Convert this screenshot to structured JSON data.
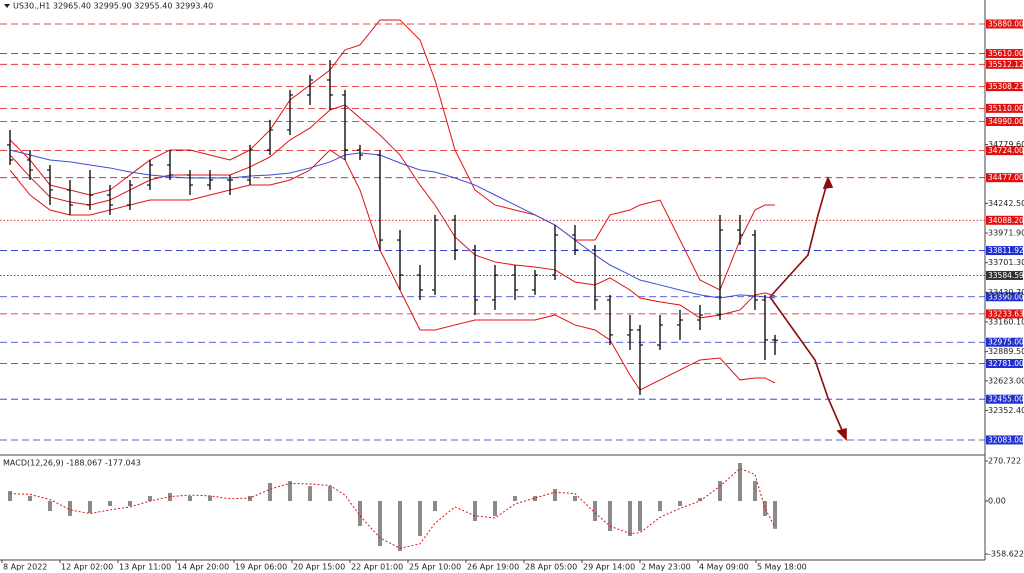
{
  "chart_data": [
    {
      "type": "ohlc",
      "title": "US30.,H1  32965.40 32995.90 32955.40 32993.40",
      "xlim": [
        0,
        197
      ],
      "ylim": [
        31964,
        36099
      ],
      "x": [
        2,
        6,
        10,
        14,
        18,
        22,
        26,
        30,
        34,
        38,
        42,
        46,
        50,
        54,
        58,
        62,
        66,
        69,
        72,
        76,
        80,
        84,
        87,
        91,
        95,
        99,
        103,
        107,
        111,
        115,
        119,
        122,
        126,
        128,
        132,
        136,
        140,
        144,
        148,
        151,
        153,
        155
      ],
      "open": [
        34776,
        34639,
        34547,
        34365,
        34228,
        34319,
        34228,
        34410,
        34593,
        34502,
        34410,
        34456,
        34456,
        34730,
        34913,
        35232,
        35369,
        35232,
        34730,
        34684,
        33908,
        33589,
        33452,
        34091,
        33817,
        33361,
        33589,
        33452,
        33589,
        33954,
        33817,
        33361,
        33042,
        33087,
        32950,
        33133,
        33178,
        33224,
        33999,
        33954,
        33361,
        32996
      ],
      "high": [
        34913,
        34730,
        34593,
        34456,
        34547,
        34410,
        34456,
        34639,
        34730,
        34547,
        34547,
        34502,
        34776,
        35005,
        35277,
        35414,
        35551,
        35277,
        34776,
        34730,
        33999,
        33680,
        34137,
        34137,
        33863,
        33680,
        33680,
        33635,
        34045,
        34045,
        33863,
        33407,
        33224,
        33133,
        33224,
        33270,
        33315,
        34137,
        34137,
        33999,
        33407,
        33042
      ],
      "low": [
        34593,
        34456,
        34228,
        34137,
        34182,
        34137,
        34182,
        34365,
        34456,
        34319,
        34365,
        34319,
        34410,
        34684,
        34867,
        35141,
        35095,
        34639,
        34639,
        33817,
        33452,
        33361,
        33407,
        33726,
        33224,
        33270,
        33361,
        33407,
        33543,
        33772,
        33270,
        32950,
        32905,
        32494,
        32905,
        32996,
        33087,
        33178,
        33863,
        33270,
        32813,
        32859
      ],
      "close": [
        34639,
        34547,
        34365,
        34228,
        34319,
        34228,
        34410,
        34593,
        34502,
        34410,
        34456,
        34456,
        34730,
        34913,
        35232,
        35369,
        35232,
        34730,
        34684,
        33908,
        33589,
        33452,
        34091,
        33817,
        33361,
        33589,
        33452,
        33589,
        33954,
        33817,
        33361,
        33042,
        33087,
        32950,
        33133,
        33178,
        33224,
        33999,
        33954,
        33361,
        32996,
        32993
      ],
      "bar_color": "#111111",
      "lines": [
        {
          "color": "#e01010",
          "values": [
            34822,
            34639,
            34410,
            34365,
            34319,
            34365,
            34502,
            34639,
            34730,
            34730,
            34684,
            34639,
            34730,
            34913,
            35186,
            35323,
            35460,
            35643,
            35689,
            35917,
            35917,
            35734,
            35369,
            34730,
            34365,
            34228,
            34182,
            34137,
            34045,
            33908,
            33908,
            34137,
            34182,
            34228,
            34273,
            33908,
            33543,
            33452,
            33908,
            34182,
            34228,
            34228
          ]
        },
        {
          "color": "#e01010",
          "values": [
            34685,
            34484,
            34301,
            34255,
            34228,
            34273,
            34365,
            34456,
            34502,
            34502,
            34502,
            34502,
            34575,
            34666,
            34822,
            34931,
            35095,
            35141,
            35022,
            34867,
            34684,
            34410,
            34228,
            33936,
            33772,
            33708,
            33680,
            33662,
            33635,
            33525,
            33498,
            33562,
            33452,
            33379,
            33343,
            33315,
            33197,
            33224,
            33270,
            33407,
            33425,
            33398
          ]
        },
        {
          "color": "#e01010",
          "values": [
            34547,
            34319,
            34182,
            34137,
            34137,
            34182,
            34228,
            34273,
            34273,
            34273,
            34319,
            34365,
            34410,
            34410,
            34456,
            34547,
            34730,
            34639,
            34365,
            33817,
            33452,
            33087,
            33087,
            33133,
            33178,
            33178,
            33178,
            33178,
            33224,
            33133,
            33087,
            32996,
            32676,
            32539,
            32631,
            32722,
            32813,
            32831,
            32631,
            32649,
            32649,
            32603
          ]
        },
        {
          "color": "#3b4fd0",
          "values": [
            34730,
            34684,
            34639,
            34621,
            34593,
            34566,
            34529,
            34502,
            34484,
            34474,
            34474,
            34474,
            34493,
            34502,
            34520,
            34566,
            34621,
            34684,
            34703,
            34684,
            34611,
            34547,
            34529,
            34474,
            34410,
            34319,
            34228,
            34137,
            34045,
            33908,
            33772,
            33680,
            33589,
            33543,
            33498,
            33452,
            33407,
            33379,
            33407,
            33398,
            33388,
            33379
          ]
        }
      ],
      "levels": [
        {
          "value": 35880,
          "label": "35880.00",
          "color": "#e01010",
          "style": "dash"
        },
        {
          "value": 35610,
          "label": "35610.00",
          "color": "#e01010",
          "style": "dash"
        },
        {
          "value": 35512.12,
          "label": "35512.12",
          "color": "#e01010",
          "style": "dash"
        },
        {
          "value": 35308.23,
          "label": "35308.23",
          "color": "#e01010",
          "style": "dash"
        },
        {
          "value": 35110,
          "label": "35110.00",
          "color": "#e01010",
          "style": "dash"
        },
        {
          "value": 34990,
          "label": "34990.00",
          "color": "#e01010",
          "style": "dash"
        },
        {
          "value": 34724,
          "label": "34724.00",
          "color": "#e01010",
          "style": "dash"
        },
        {
          "value": 34477,
          "label": "34477.00",
          "color": "#e01010",
          "style": "dash"
        },
        {
          "value": 34088.2,
          "label": "34088.20",
          "color": "#e01010",
          "style": "dot"
        },
        {
          "value": 33811.92,
          "label": "33811.92",
          "color": "#2030d0",
          "style": "dash"
        },
        {
          "value": 33584.59,
          "label": "33584.59",
          "color": "#333333",
          "style": "dot"
        },
        {
          "value": 33390,
          "label": "33390.00",
          "color": "#2030d0",
          "style": "dash"
        },
        {
          "value": 33233.63,
          "label": "33233.63",
          "color": "#e01010",
          "style": "dash"
        },
        {
          "value": 32975,
          "label": "32975.00",
          "color": "#2030d0",
          "style": "dash"
        },
        {
          "value": 32781,
          "label": "32781.00",
          "color": "#2030d0",
          "style": "dash"
        },
        {
          "value": 32455,
          "label": "32455.00",
          "color": "#2030d0",
          "style": "dash"
        },
        {
          "value": 32083,
          "label": "32083.00",
          "color": "#2030d0",
          "style": "dash"
        }
      ],
      "yticks": [
        {
          "value": 34779.6,
          "label": "34779.60"
        },
        {
          "value": 34242.5,
          "label": "34242.50"
        },
        {
          "value": 33971.9,
          "label": "33971.90"
        },
        {
          "value": 33701.3,
          "label": "33701.30"
        },
        {
          "value": 33430.7,
          "label": "33430.70"
        },
        {
          "value": 33160.1,
          "label": "33160.10"
        },
        {
          "value": 32889.5,
          "label": "32889.50"
        },
        {
          "value": 32623,
          "label": "32623.00"
        },
        {
          "value": 32352.4,
          "label": "32352.40"
        }
      ]
    },
    {
      "type": "macd",
      "title": "MACD(12,26,9) -188.067 -177.043",
      "xlim": [
        0,
        197
      ],
      "ylim": [
        -399.2,
        297.8
      ],
      "values": [
        68,
        34,
        -68,
        -101,
        -81,
        -34,
        -34,
        34,
        54,
        34,
        34,
        0,
        34,
        122,
        135,
        101,
        101,
        0,
        -169,
        -305,
        -338,
        -237,
        -68,
        0,
        -135,
        -101,
        34,
        34,
        81,
        34,
        -135,
        -203,
        -237,
        -203,
        -68,
        -34,
        20,
        135,
        257,
        135,
        -101,
        -188.067
      ],
      "signal": [
        50,
        45,
        10,
        -60,
        -85,
        -60,
        -40,
        0,
        30,
        40,
        35,
        15,
        20,
        80,
        120,
        115,
        105,
        40,
        -100,
        -250,
        -320,
        -290,
        -150,
        -40,
        -100,
        -115,
        -20,
        20,
        60,
        50,
        -80,
        -170,
        -220,
        -215,
        -110,
        -50,
        0,
        100,
        220,
        180,
        -50,
        -177.043
      ],
      "bar_color": "#8a8a8a",
      "signal_color": "#e01010",
      "yticks": [
        {
          "value": 270.722,
          "label": "270.722"
        },
        {
          "value": 0,
          "label": "0.00"
        },
        {
          "value": -358.622,
          "label": "-358.622"
        }
      ],
      "xticks": [
        {
          "value": 0.4,
          "label": "8 Apr 2022"
        },
        {
          "value": 12,
          "label": "12 Apr 02:00"
        },
        {
          "value": 23.6,
          "label": "13 Apr 11:00"
        },
        {
          "value": 35.2,
          "label": "14 Apr 20:00"
        },
        {
          "value": 46.8,
          "label": "19 Apr 06:00"
        },
        {
          "value": 58.4,
          "label": "20 Apr 15:00"
        },
        {
          "value": 70,
          "label": "22 Apr 01:00"
        },
        {
          "value": 81.6,
          "label": "25 Apr 10:00"
        },
        {
          "value": 93.2,
          "label": "26 Apr 19:00"
        },
        {
          "value": 104.8,
          "label": "28 Apr 05:00"
        },
        {
          "value": 116.4,
          "label": "29 Apr 14:00"
        },
        {
          "value": 128,
          "label": "2 May 23:00"
        },
        {
          "value": 139.6,
          "label": "4 May 09:00"
        },
        {
          "value": 151.2,
          "label": "5 May 18:00"
        }
      ]
    }
  ]
}
